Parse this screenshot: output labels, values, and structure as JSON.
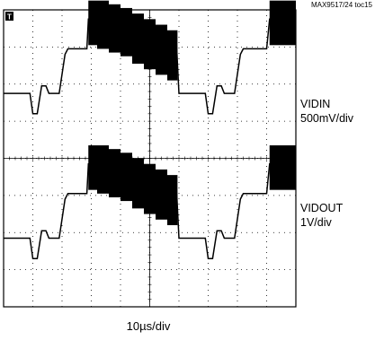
{
  "figure_tag": "MAX9517/24 toc15",
  "trigger_marker": "T",
  "chart_data": {
    "type": "line",
    "x_divisions": 10,
    "y_divisions": 8,
    "xlabel": "10µs/div",
    "grid": true,
    "series": [
      {
        "name": "VIDIN",
        "scale": "500mV/div",
        "x": [
          0,
          0.9,
          1.0,
          1.15,
          1.3,
          1.45,
          1.55,
          1.9,
          2.1,
          2.2,
          2.85,
          2.9,
          4.5,
          4.6,
          5.9,
          6.0,
          6.8,
          6.9,
          7.0,
          7.15,
          7.3,
          7.45,
          7.55,
          7.9,
          8.1,
          8.2,
          9.0,
          9.1,
          9.85,
          10
        ],
        "y": [
          0.55,
          0.55,
          0.0,
          0.0,
          0.75,
          0.75,
          0.55,
          0.55,
          1.6,
          1.75,
          1.75,
          2.55,
          2.55,
          2.1,
          2.1,
          0.55,
          0.55,
          0.55,
          0.0,
          0.0,
          0.75,
          0.75,
          0.55,
          0.55,
          1.6,
          1.75,
          1.75,
          2.55,
          2.55,
          2.55
        ],
        "burst_start": [
          2.9,
          3.2,
          3.6,
          4.0,
          4.4,
          4.8,
          5.2,
          5.6,
          9.1
        ],
        "burst_end": [
          3.2,
          3.6,
          4.0,
          4.4,
          4.8,
          5.2,
          5.6,
          5.95,
          10
        ],
        "burst_top": [
          3.05,
          3.05,
          2.95,
          2.85,
          2.7,
          2.55,
          2.4,
          2.25,
          3.05
        ],
        "burst_bottom": [
          1.85,
          1.75,
          1.65,
          1.55,
          1.35,
          1.2,
          1.05,
          0.9,
          1.85
        ]
      },
      {
        "name": "VIDOUT",
        "scale": "1V/div",
        "x": [
          0,
          0.9,
          1.0,
          1.15,
          1.3,
          1.45,
          1.55,
          1.9,
          2.1,
          2.2,
          2.85,
          2.9,
          4.5,
          4.6,
          5.9,
          6.0,
          6.8,
          6.9,
          7.0,
          7.15,
          7.3,
          7.45,
          7.55,
          7.9,
          8.1,
          8.2,
          9.0,
          9.1,
          9.85,
          10
        ],
        "y": [
          0.55,
          0.55,
          0.0,
          0.0,
          0.75,
          0.75,
          0.55,
          0.55,
          1.6,
          1.75,
          1.75,
          2.55,
          2.55,
          2.1,
          2.1,
          0.55,
          0.55,
          0.55,
          0.0,
          0.0,
          0.75,
          0.75,
          0.55,
          0.55,
          1.6,
          1.75,
          1.75,
          2.55,
          2.55,
          2.55
        ],
        "burst_start": [
          2.9,
          3.2,
          3.6,
          4.0,
          4.4,
          4.8,
          5.2,
          5.6,
          9.1
        ],
        "burst_end": [
          3.2,
          3.6,
          4.0,
          4.4,
          4.8,
          5.2,
          5.6,
          5.95,
          10
        ],
        "burst_top": [
          3.05,
          3.05,
          2.95,
          2.85,
          2.7,
          2.55,
          2.4,
          2.25,
          3.05
        ],
        "burst_bottom": [
          1.85,
          1.75,
          1.65,
          1.55,
          1.35,
          1.2,
          1.05,
          0.9,
          1.85
        ]
      }
    ]
  }
}
